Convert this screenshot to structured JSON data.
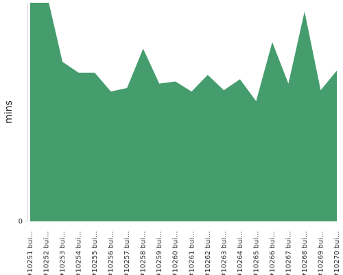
{
  "chart_data": {
    "type": "area",
    "y_label": "mins",
    "categories": [
      "#10251 bui…",
      "#10252 bui…",
      "#10253 bui…",
      "#10254 bui…",
      "#10255 bui…",
      "#10256 bui…",
      "#10257 bui…",
      "#10258 bui…",
      "#10259 bui…",
      "#10260 bui…",
      "#10261 bui…",
      "#10262 bui…",
      "#10263 bui…",
      "#10264 bui…",
      "#10265 bui…",
      "#10266 bui…",
      "#10267 bui…",
      "#10268 bui…",
      "#10269 bui…",
      "#10270 bui…"
    ],
    "values": [
      105,
      105,
      73,
      68,
      68,
      59.4,
      61,
      79,
      63,
      64,
      59.4,
      67,
      60,
      65,
      55,
      82,
      63,
      96,
      60,
      69
    ],
    "color": "#459c6d",
    "ylim": [
      0,
      100
    ],
    "yticks": [
      0
    ]
  }
}
